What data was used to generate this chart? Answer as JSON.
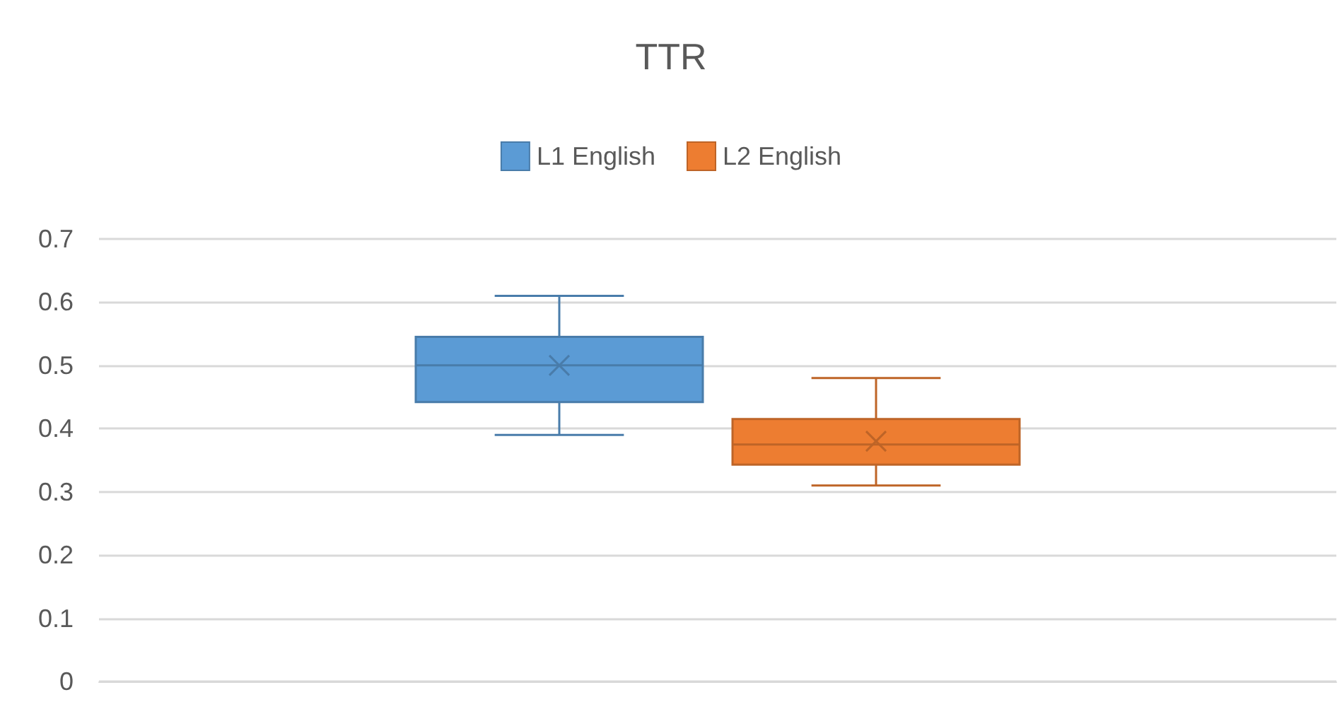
{
  "chart_data": {
    "type": "box",
    "title": "TTR",
    "categories": [
      null
    ],
    "series": [
      {
        "name": "L1 English",
        "color": "#5b9bd5",
        "boxes": [
          {
            "low": 0.39,
            "q1": 0.442,
            "median": 0.5,
            "q3": 0.545,
            "high": 0.61,
            "mean": 0.5
          }
        ]
      },
      {
        "name": "L2 English",
        "color": "#ed7d31",
        "boxes": [
          {
            "low": 0.31,
            "q1": 0.343,
            "median": 0.375,
            "q3": 0.415,
            "high": 0.48,
            "mean": 0.38
          }
        ]
      }
    ],
    "ylim": [
      0,
      0.7
    ],
    "yticks": [
      0,
      0.1,
      0.2,
      0.3,
      0.4,
      0.5,
      0.6,
      0.7
    ],
    "grid": "y",
    "legend": "top",
    "tick_labels": "y"
  }
}
